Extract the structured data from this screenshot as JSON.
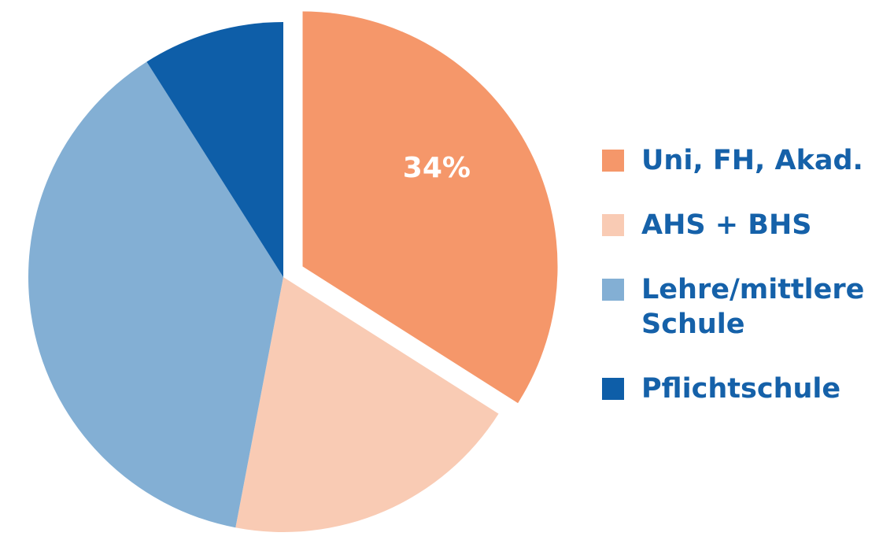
{
  "chart_data": {
    "type": "pie",
    "categories": [
      "Uni, FH, Akad.",
      "AHS + BHS",
      "Lehre/mittlere Schule",
      "Pflichtschule"
    ],
    "values": [
      34,
      19,
      38,
      9
    ],
    "value_labels": [
      "34%",
      null,
      null,
      null
    ],
    "colors": [
      "#f5976a",
      "#f9cbb4",
      "#83afd4",
      "#0e5ea8"
    ]
  }
}
